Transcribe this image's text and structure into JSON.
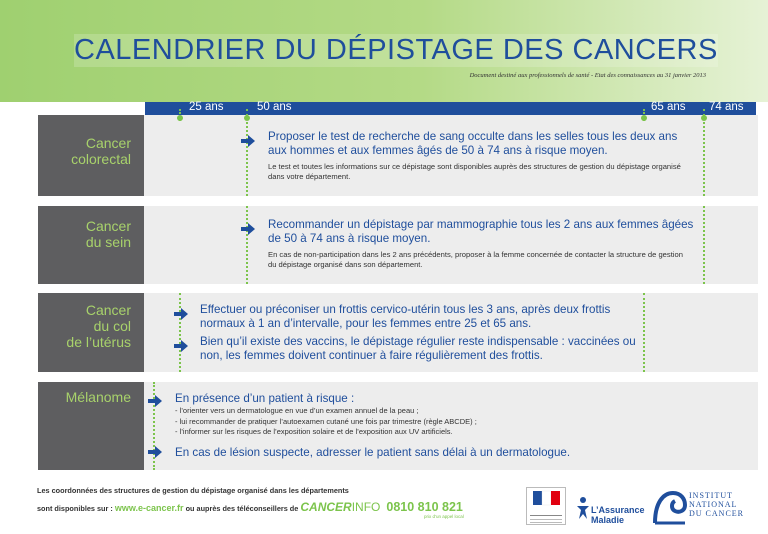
{
  "header": {
    "title": "CALENDRIER DU DÉPISTAGE DES CANCERS",
    "subtitle": "Document destiné aux professionnels de santé - Etat des connaissances au 31 janvier 2013"
  },
  "ages": [
    "25 ans",
    "50 ans",
    "65 ans",
    "74 ans"
  ],
  "sections": {
    "colorectal": {
      "label_line1": "Cancer",
      "label_line2": "colorectal",
      "main": "Proposer le test de recherche de sang occulte dans les selles tous les deux ans aux hommes et aux femmes âgés de 50 à 74 ans à risque moyen.",
      "sub": "Le test et toutes les informations sur ce dépistage sont disponibles auprès des structures de gestion du dépistage organisé dans votre département."
    },
    "sein": {
      "label_line1": "Cancer",
      "label_line2": "du sein",
      "main": "Recommander un dépistage par mammographie tous les 2 ans aux femmes âgées de 50 à 74 ans à risque moyen.",
      "sub": "En cas de non-participation dans les 2 ans précédents, proposer à la femme concernée de contacter la structure de gestion du dépistage organisé dans son département."
    },
    "uterus": {
      "label_line1": "Cancer",
      "label_line2": "du col",
      "label_line3": "de l’utérus",
      "main1": "Effectuer ou préconiser un frottis cervico-utérin tous les 3 ans, après deux frottis normaux à 1 an d’intervalle, pour les femmes entre 25 et 65 ans.",
      "main2": "Bien qu’il existe des vaccins, le dépistage régulier reste indispensable : vaccinées ou non, les femmes doivent continuer à faire régulièrement des frottis."
    },
    "melanome": {
      "label": "Mélanome",
      "main1": "En présence d’un patient à risque :",
      "bullets": [
        "- l’orienter vers un dermatologue en vue d’un examen annuel de la peau ;",
        "- lui recommander de pratiquer l’autoexamen cutané une fois par trimestre (règle ABCDE) ;",
        "- l’informer sur les risques de l’exposition solaire et de l’exposition aux UV artificiels."
      ],
      "main2": "En cas de lésion suspecte, adresser le patient sans délai à un dermatologue."
    }
  },
  "footer": {
    "line1": "Les coordonnées des structures de gestion du dépistage organisé dans les départements",
    "line2_prefix": "sont disponibles sur :",
    "website": "www.e-cancer.fr",
    "line2_mid": "ou auprès des téléconseillers de",
    "cancer_word": "CANCER",
    "info_word": "INFO",
    "phone": "0810 810 821",
    "phone_note": "prix d’un appel local"
  },
  "logos": {
    "assurance_line1": "L’Assurance",
    "assurance_line2": "Maladie",
    "inca_line1": "INSTITUT",
    "inca_line2": "NATIONAL",
    "inca_line3": "DU CANCER"
  },
  "colors": {
    "blue": "#1f4e9c",
    "green": "#7cc44c",
    "label_bg": "#5e5e60",
    "content_bg": "#ededed"
  }
}
